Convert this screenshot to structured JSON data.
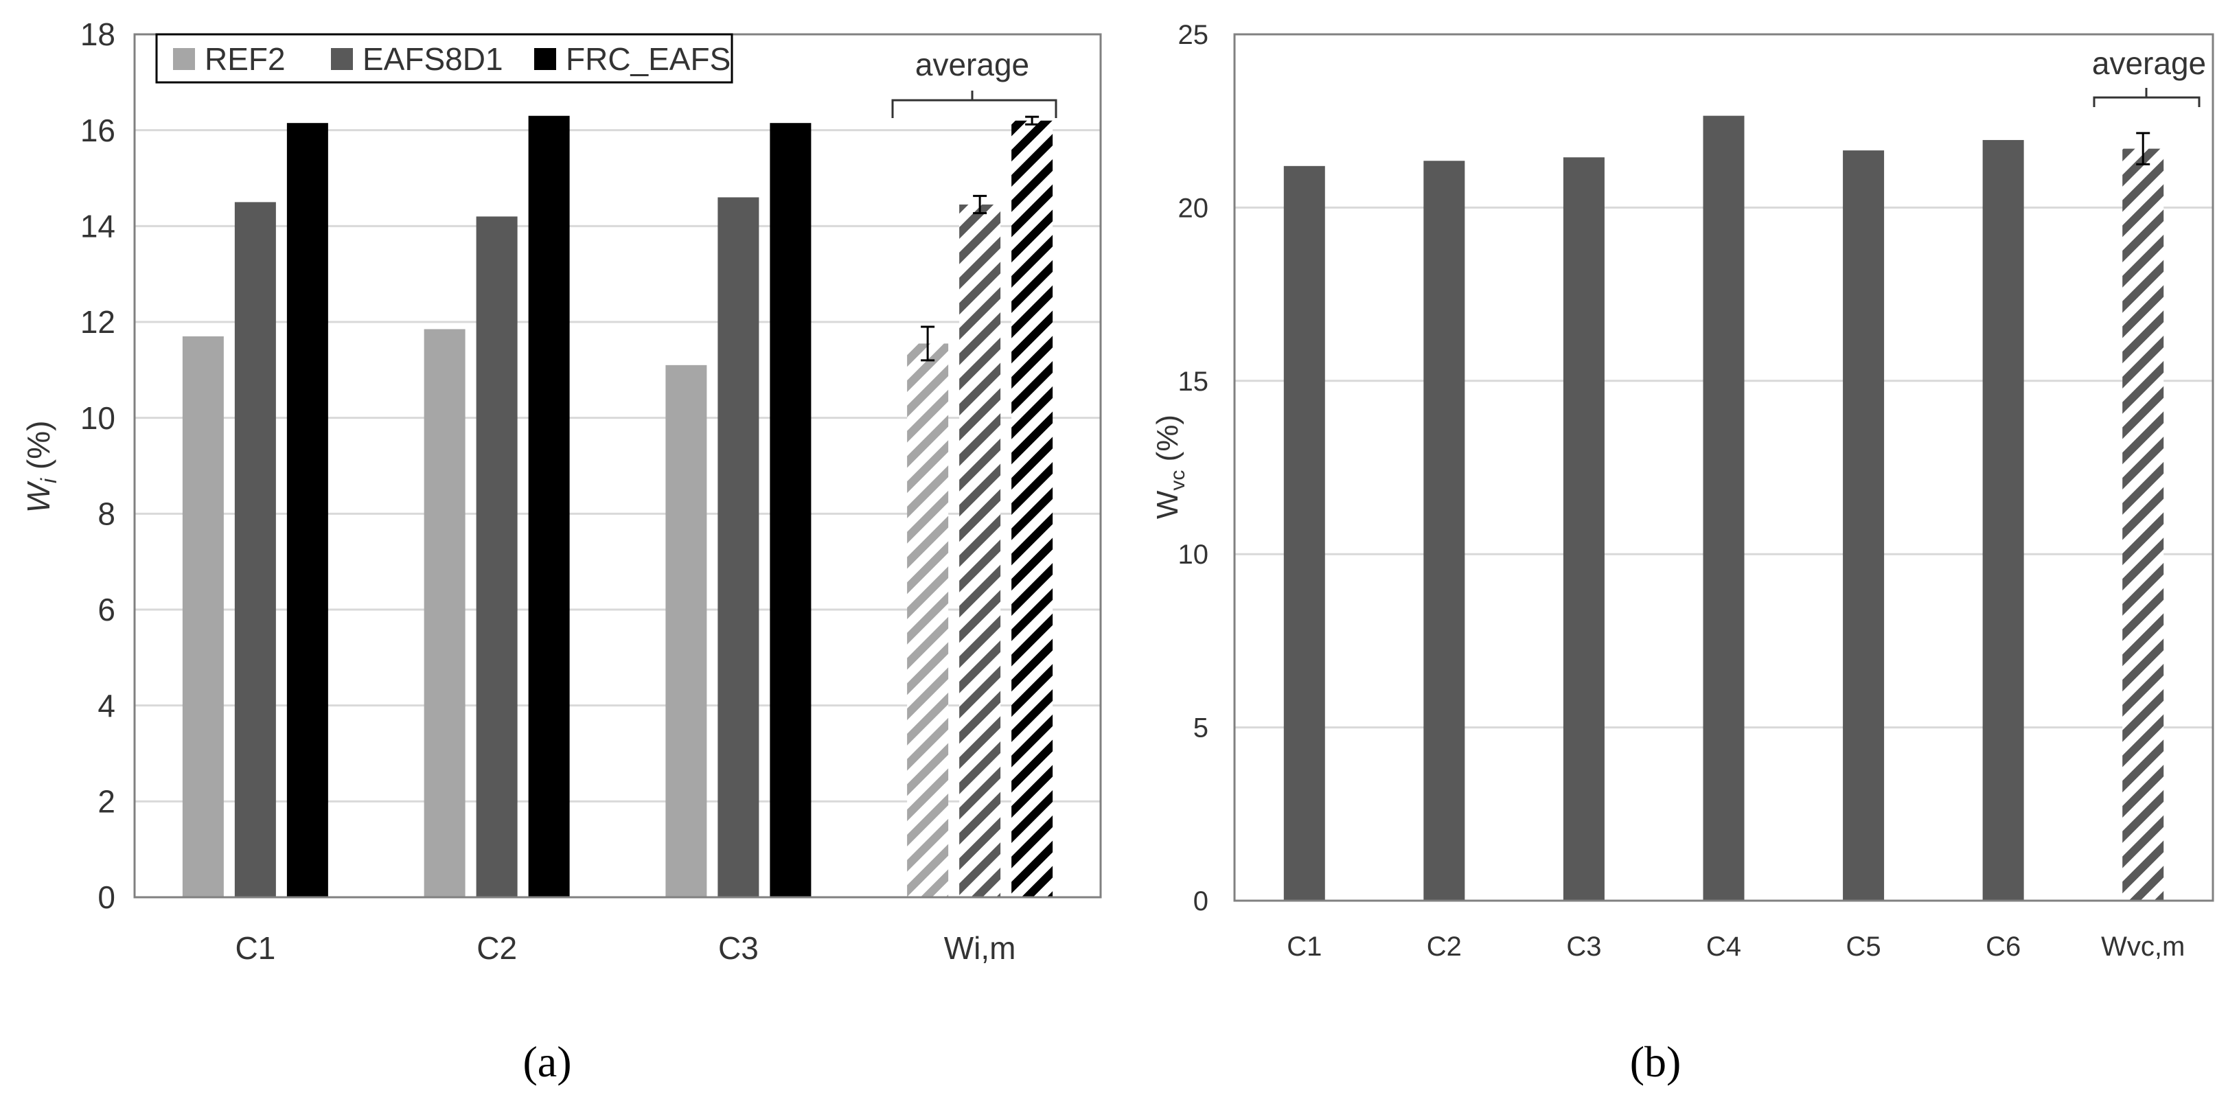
{
  "colors": {
    "ref2": "#a6a6a6",
    "eafs8d1": "#595959",
    "frc": "#000000",
    "grid": "#d9d9d9",
    "axis": "#808080",
    "text": "#333333"
  },
  "chart_data": [
    {
      "type": "bar",
      "panel_label": "(a)",
      "ylabel_main": "W",
      "ylabel_sub": "i",
      "ylabel_unit": " (%)",
      "ylim": [
        0,
        18
      ],
      "yticks": [
        "0",
        "2",
        "4",
        "6",
        "8",
        "10",
        "12",
        "14",
        "16",
        "18"
      ],
      "grid": true,
      "legend": {
        "position": "top-left",
        "entries": [
          "REF2",
          "EAFS8D1",
          "FRC_EAFS"
        ]
      },
      "categories": [
        "C1",
        "C2",
        "C3",
        "Wi,m"
      ],
      "hatched_category": "Wi,m",
      "series": [
        {
          "name": "REF2",
          "values": [
            11.7,
            11.85,
            11.1,
            11.55
          ],
          "errors": [
            null,
            null,
            null,
            0.35
          ]
        },
        {
          "name": "EAFS8D1",
          "values": [
            14.5,
            14.2,
            14.6,
            14.45
          ],
          "errors": [
            null,
            null,
            null,
            0.18
          ]
        },
        {
          "name": "FRC_EAFS",
          "values": [
            16.15,
            16.3,
            16.15,
            16.2
          ],
          "errors": [
            null,
            null,
            null,
            0.08
          ]
        }
      ],
      "annotation": "average"
    },
    {
      "type": "bar",
      "panel_label": "(b)",
      "ylabel_main": "W",
      "ylabel_sub": "vc",
      "ylabel_unit": " (%)",
      "ylim": [
        0,
        25
      ],
      "yticks": [
        "0",
        "5",
        "10",
        "15",
        "20",
        "25"
      ],
      "grid": true,
      "categories": [
        "C1",
        "C2",
        "C3",
        "C4",
        "C5",
        "C6",
        "Wvc,m"
      ],
      "hatched_category": "Wvc,m",
      "series": [
        {
          "name": "EAFS8D1",
          "values": [
            21.2,
            21.35,
            21.45,
            22.65,
            21.65,
            21.95,
            21.7
          ],
          "errors": [
            null,
            null,
            null,
            null,
            null,
            null,
            0.45
          ]
        }
      ],
      "annotation": "average"
    }
  ]
}
